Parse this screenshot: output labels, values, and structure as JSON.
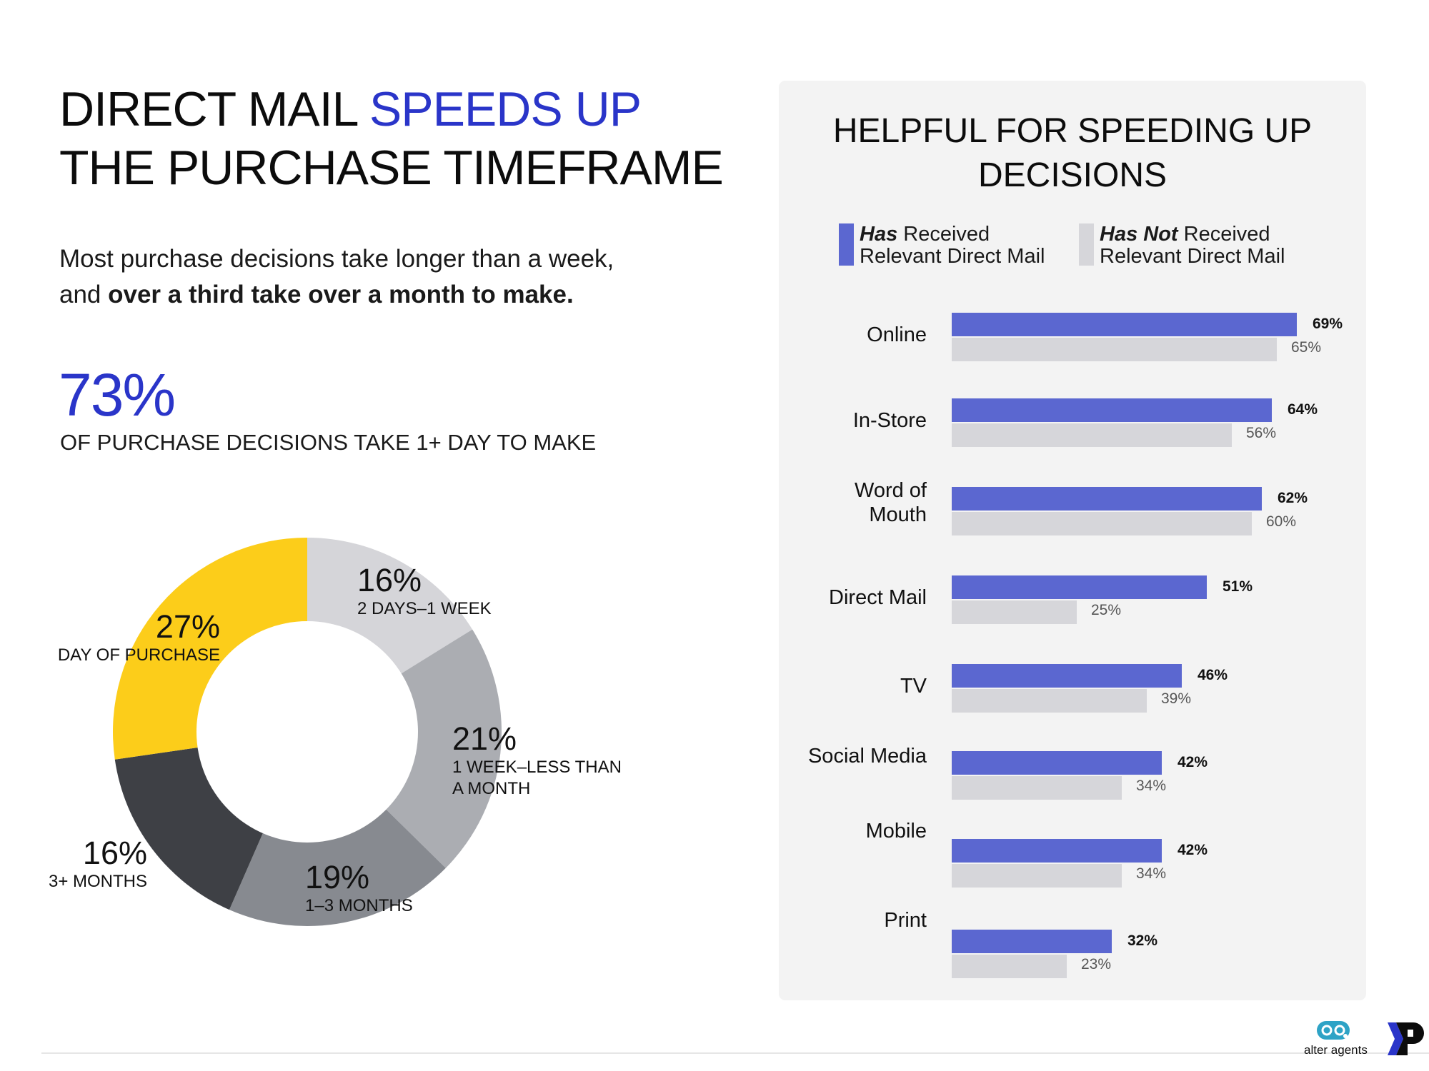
{
  "header": {
    "title_part1": "DIRECT MAIL ",
    "title_accent": "SPEEDS UP",
    "title_line2": "THE PURCHASE TIMEFRAME",
    "subtitle_line1": "Most purchase decisions take longer than a week,",
    "subtitle_line2_prefix": "and ",
    "subtitle_line2_bold": "over a third take over a month to make.",
    "stat_value": "73%",
    "stat_caption": "OF PURCHASE DECISIONS TAKE 1+ DAY TO MAKE",
    "accent_color": "#2a35c9"
  },
  "panel": {
    "title_line1": "HELPFUL FOR SPEEDING UP",
    "title_line2": "DECISIONS",
    "legend": [
      {
        "emph": "Has",
        "rest": " Received",
        "line2": "Relevant Direct Mail",
        "color": "#5b67d0"
      },
      {
        "emph": "Has Not",
        "rest": " Received",
        "line2": "Relevant Direct Mail",
        "color": "#d6d6da"
      }
    ]
  },
  "chart_data": [
    {
      "type": "pie",
      "subtype": "donut",
      "title": "Purchase decision timeframe",
      "categories": [
        "2 DAYS–1 WEEK",
        "1 WEEK–LESS THAN A MONTH",
        "1–3 MONTHS",
        "3+ MONTHS",
        "DAY OF PURCHASE"
      ],
      "values": [
        16,
        21,
        19,
        16,
        27
      ],
      "labels": [
        "16%",
        "21%",
        "19%",
        "16%",
        "27%"
      ],
      "colors": [
        "#d5d5d9",
        "#abadb2",
        "#878a90",
        "#3e4045",
        "#fccd1a"
      ],
      "start_angle": "12 o'clock, clockwise"
    },
    {
      "type": "bar",
      "orientation": "horizontal",
      "title": "HELPFUL FOR SPEEDING UP DECISIONS",
      "categories": [
        "Online",
        "In-Store",
        "Word of Mouth",
        "Direct Mail",
        "TV",
        "Social Media",
        "Mobile",
        "Print"
      ],
      "series": [
        {
          "name": "Has Received Relevant Direct Mail",
          "values": [
            69,
            64,
            62,
            51,
            46,
            42,
            42,
            32
          ],
          "color": "#5b67d0"
        },
        {
          "name": "Has Not Received Relevant Direct Mail",
          "values": [
            65,
            56,
            60,
            25,
            39,
            34,
            34,
            23
          ],
          "color": "#d6d6da"
        }
      ],
      "value_format": "percent",
      "xlim": [
        0,
        100
      ],
      "grid": false,
      "legend_position": "top"
    }
  ],
  "bars": {
    "rows": [
      {
        "label": "Online",
        "has": 69,
        "hasnot": 65,
        "has_label": "69%",
        "hasnot_label": "65%"
      },
      {
        "label": "In-Store",
        "has": 64,
        "hasnot": 56,
        "has_label": "64%",
        "hasnot_label": "56%"
      },
      {
        "label": "Word of\nMouth",
        "has": 62,
        "hasnot": 60,
        "has_label": "62%",
        "hasnot_label": "60%"
      },
      {
        "label": "Direct Mail",
        "has": 51,
        "hasnot": 25,
        "has_label": "51%",
        "hasnot_label": "25%"
      },
      {
        "label": "TV",
        "has": 46,
        "hasnot": 39,
        "has_label": "46%",
        "hasnot_label": "39%"
      },
      {
        "label": "Social Media",
        "has": 42,
        "hasnot": 34,
        "has_label": "42%",
        "hasnot_label": "34%"
      },
      {
        "label": "Mobile",
        "has": 42,
        "hasnot": 34,
        "has_label": "42%",
        "hasnot_label": "34%"
      },
      {
        "label": "Print",
        "has": 32,
        "hasnot": 23,
        "has_label": "32%",
        "hasnot_label": "23%"
      }
    ]
  },
  "donut_labels": [
    {
      "pct": "16%",
      "cap": "2 DAYS–1 WEEK"
    },
    {
      "pct": "21%",
      "cap1": "1 WEEK–LESS THAN",
      "cap2": "A MONTH"
    },
    {
      "pct": "19%",
      "cap": "1–3 MONTHS"
    },
    {
      "pct": "16%",
      "cap": "3+ MONTHS"
    },
    {
      "pct": "27%",
      "cap": "DAY OF PURCHASE"
    }
  ],
  "footer": {
    "logo1_text": "alter agents",
    "logo2_letter": "P"
  }
}
